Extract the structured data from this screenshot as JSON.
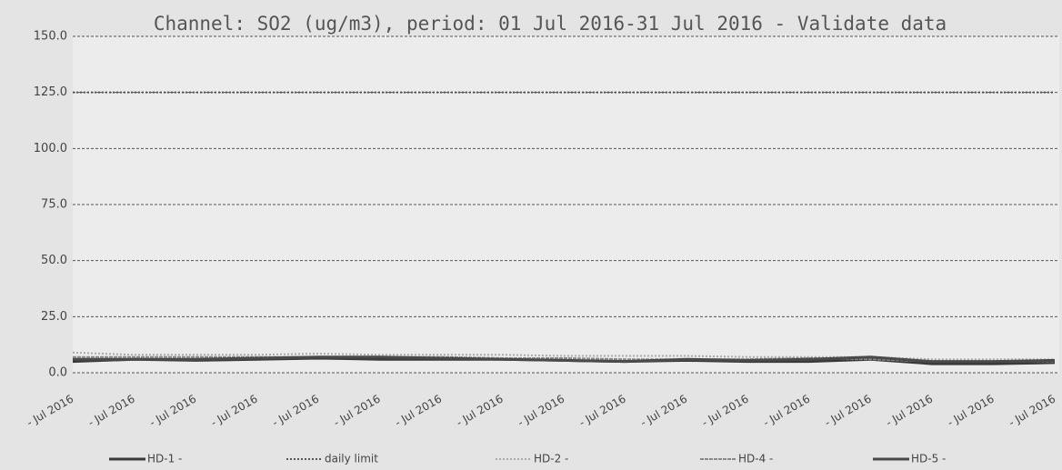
{
  "chart_data": {
    "type": "line",
    "title": "Channel: SO2 (ug/m3), period: 01 Jul 2016-31 Jul 2016 - Validate data",
    "categories": [
      "- Jul 2016",
      "- Jul 2016",
      "- Jul 2016",
      "- Jul 2016",
      "- Jul 2016",
      "- Jul 2016",
      "- Jul 2016",
      "- Jul 2016",
      "- Jul 2016",
      "- Jul 2016",
      "- Jul 2016",
      "- Jul 2016",
      "- Jul 2016",
      "- Jul 2016",
      "- Jul 2016",
      "- Jul 2016",
      "- Jul 2016"
    ],
    "series": [
      {
        "name": "HD-1 -",
        "color": "#3a3a3a",
        "dash": "solid",
        "values": [
          5,
          6,
          5.5,
          6,
          6.5,
          6,
          6,
          6,
          5.5,
          5,
          5.5,
          5,
          5,
          6,
          4,
          4,
          4.5
        ]
      },
      {
        "name": "daily limit",
        "color": "#555555",
        "dash": "dotted",
        "values": [
          125,
          125,
          125,
          125,
          125,
          125,
          125,
          125,
          125,
          125,
          125,
          125,
          125,
          125,
          125,
          125,
          125
        ]
      },
      {
        "name": "HD-2 -",
        "color": "#aaaaaa",
        "dash": "dotted",
        "values": [
          9,
          8,
          8,
          8,
          8.5,
          8,
          8,
          8,
          7.5,
          7.5,
          7.5,
          7,
          7,
          7,
          6,
          6,
          6
        ]
      },
      {
        "name": "HD-4 -",
        "color": "#888888",
        "dash": "wavy",
        "values": [
          7,
          7,
          7,
          7,
          7,
          7,
          7,
          6.5,
          6.5,
          6,
          6,
          6,
          6.5,
          6,
          5,
          5,
          5
        ]
      },
      {
        "name": "HD-5 -",
        "color": "#4a4a4a",
        "dash": "solid",
        "values": [
          6,
          6,
          6,
          6.5,
          7,
          7,
          6.5,
          6,
          5.5,
          5,
          6,
          5.5,
          6,
          7,
          5,
          5,
          5.5
        ]
      }
    ],
    "ylim": [
      0,
      150
    ],
    "yticks": [
      {
        "value": 0,
        "label": "0.0"
      },
      {
        "value": 25,
        "label": "25.0"
      },
      {
        "value": 50,
        "label": "50.0"
      },
      {
        "value": 75,
        "label": "75.0"
      },
      {
        "value": 100,
        "label": "100.0"
      },
      {
        "value": 125,
        "label": "125.0"
      },
      {
        "value": 150,
        "label": "150.0"
      }
    ],
    "grid": true
  }
}
